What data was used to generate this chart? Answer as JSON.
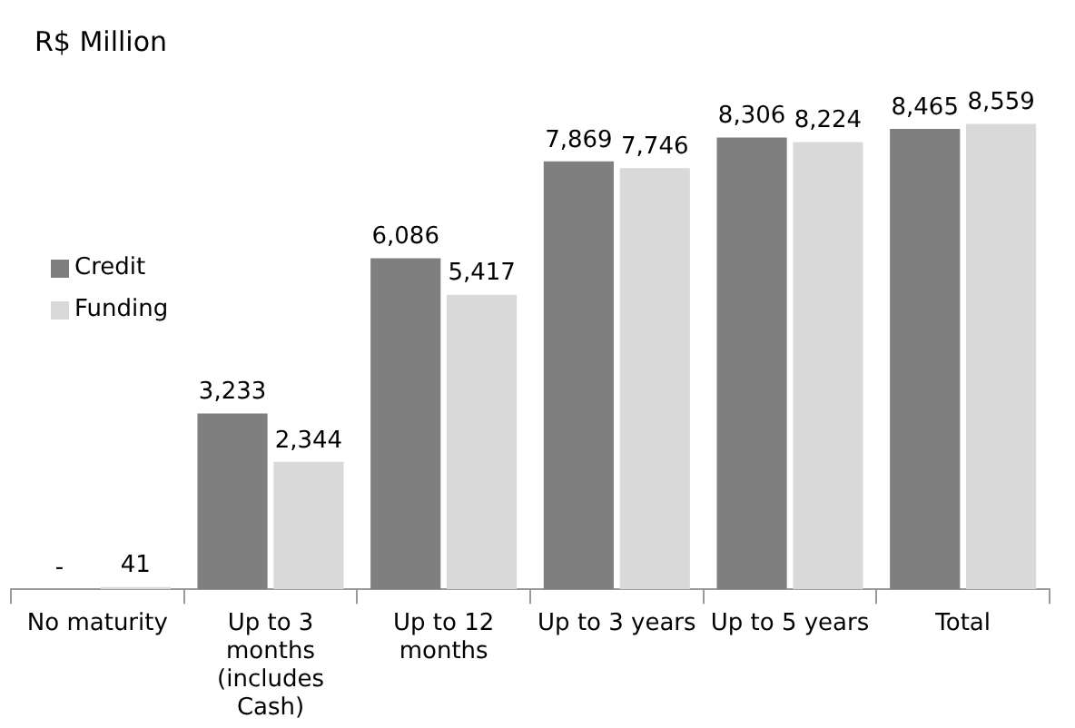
{
  "chart_data": {
    "type": "bar",
    "title": "R$ Million",
    "categories": [
      "No maturity",
      "Up to 3 months (includes Cash)",
      "Up to 12 months",
      "Up to 3 years",
      "Up to 5 years",
      "Total"
    ],
    "series": [
      {
        "name": "Credit",
        "color": "#7f7f7f",
        "values": [
          null,
          3233,
          6086,
          7869,
          8306,
          8465
        ],
        "value_labels": [
          "-",
          "3,233",
          "6,086",
          "7,869",
          "8,306",
          "8,465"
        ]
      },
      {
        "name": "Funding",
        "color": "#d9d9d9",
        "values": [
          41,
          2344,
          5417,
          7746,
          8224,
          8559
        ],
        "value_labels": [
          "41",
          "2,344",
          "5,417",
          "7,746",
          "8,224",
          "8,559"
        ]
      }
    ],
    "legend": "top left",
    "grid": false
  }
}
